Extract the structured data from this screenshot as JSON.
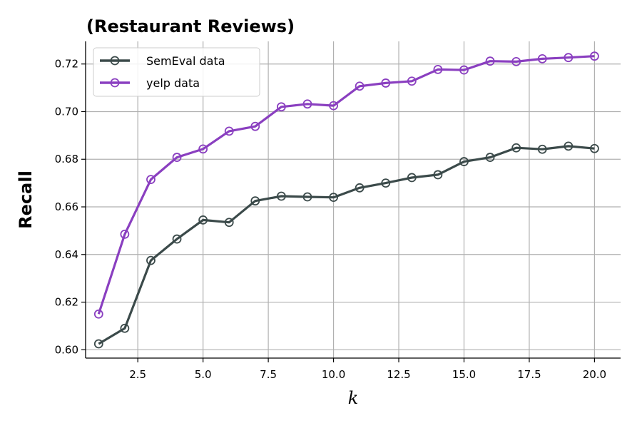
{
  "chart_data": {
    "type": "line",
    "title": "(Restaurant Reviews)",
    "xlabel": "k",
    "ylabel": "Recall",
    "xlim": [
      0.5,
      21
    ],
    "ylim": [
      0.5965,
      0.7295
    ],
    "xticks": [
      2.5,
      5.0,
      7.5,
      10.0,
      12.5,
      15.0,
      17.5,
      20.0
    ],
    "xtick_labels": [
      "2.5",
      "5.0",
      "7.5",
      "10.0",
      "12.5",
      "15.0",
      "17.5",
      "20.0"
    ],
    "yticks": [
      0.6,
      0.62,
      0.64,
      0.66,
      0.68,
      0.7,
      0.72
    ],
    "ytick_labels": [
      "0.60",
      "0.62",
      "0.64",
      "0.66",
      "0.68",
      "0.70",
      "0.72"
    ],
    "grid": true,
    "legend_position": "top-left",
    "x": [
      1,
      2,
      3,
      4,
      5,
      6,
      7,
      8,
      9,
      10,
      11,
      12,
      13,
      14,
      15,
      16,
      17,
      18,
      19,
      20
    ],
    "series": [
      {
        "name": "SemEval data",
        "color": "#3b4a4a",
        "marker": "circle-open",
        "values": [
          0.6025,
          0.609,
          0.6375,
          0.6465,
          0.6545,
          0.6535,
          0.6625,
          0.6645,
          0.6642,
          0.664,
          0.668,
          0.67,
          0.6723,
          0.6735,
          0.679,
          0.6808,
          0.6848,
          0.6842,
          0.6855,
          0.6845
        ]
      },
      {
        "name": "yelp data",
        "color": "#8a3fc0",
        "marker": "circle-open",
        "values": [
          0.615,
          0.6485,
          0.6715,
          0.6808,
          0.6843,
          0.6918,
          0.6938,
          0.702,
          0.7032,
          0.7025,
          0.7107,
          0.712,
          0.7128,
          0.7177,
          0.7175,
          0.7212,
          0.721,
          0.7222,
          0.7227,
          0.7233
        ]
      }
    ]
  }
}
